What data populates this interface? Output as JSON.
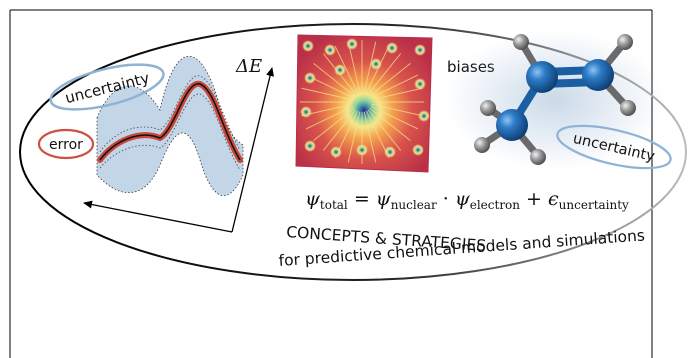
{
  "labels": {
    "uncertainty_left": "uncertainty",
    "error": "error",
    "delta_e": "ΔE",
    "biases": "biases",
    "uncertainty_right": "uncertainty",
    "headline": "CONCEPTS & STRATEGIES",
    "subline": "for predictive chemical models and simulations"
  },
  "equation": {
    "psi": "ψ",
    "sub_total": "total",
    "equals": " = ",
    "sub_nuclear": "nuclear",
    "dot": " · ",
    "sub_electron": "electron",
    "plus": " + ",
    "epsilon": "ϵ",
    "sub_uncertainty": "uncertainty"
  },
  "colors": {
    "uncertainty_band": "#b8cfe3",
    "error_curve": "#c8493b",
    "uncertainty_ellipse": "#8fb3d4",
    "error_ellipse": "#d0503f",
    "molecule_carbon": "#1b5fa3",
    "molecule_hydrogen": "#8c8c8c",
    "fractal_base": "#c4384a",
    "fractal_center": "#2f2a7c"
  }
}
